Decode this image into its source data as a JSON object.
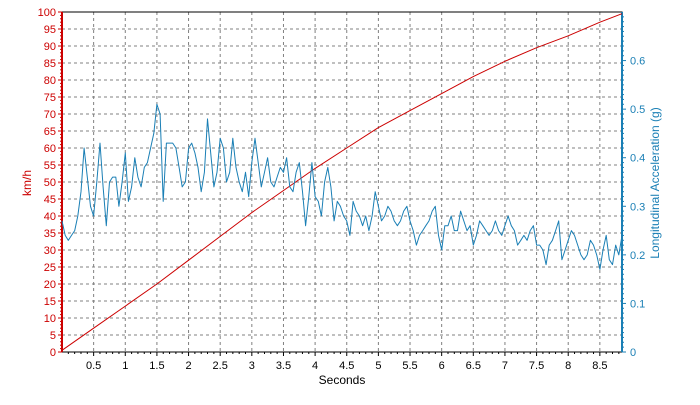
{
  "chart_data": {
    "type": "line",
    "title": "",
    "xlabel": "Seconds",
    "ylabel_left": "km/h",
    "ylabel_right": "Longitudinal Acceleration (g)",
    "xlim": [
      0,
      8.85
    ],
    "ylim_left": [
      0,
      100
    ],
    "ylim_right": [
      0,
      0.7
    ],
    "x_ticks": [
      0.5,
      1,
      1.5,
      2,
      2.5,
      3,
      3.5,
      4,
      4.5,
      5,
      5.5,
      6,
      6.5,
      7,
      7.5,
      8,
      8.5
    ],
    "x_tick_labels": [
      "0.5",
      "1",
      "1.5",
      "2",
      "2.5",
      "3",
      "3.5",
      "4",
      "4.5",
      "5",
      "5.5",
      "6",
      "6.5",
      "7",
      "7.5",
      "8",
      "8.5"
    ],
    "y_left_ticks": [
      0,
      5,
      10,
      15,
      20,
      25,
      30,
      35,
      40,
      45,
      50,
      55,
      60,
      65,
      70,
      75,
      80,
      85,
      90,
      95,
      100
    ],
    "y_left_tick_labels": [
      "0",
      "5",
      "10",
      "15",
      "20",
      "25",
      "30",
      "35",
      "40",
      "45",
      "50",
      "55",
      "60",
      "65",
      "70",
      "75",
      "80",
      "85",
      "90",
      "95",
      "100"
    ],
    "y_right_ticks": [
      0,
      0.1,
      0.2,
      0.3,
      0.4,
      0.5,
      0.6
    ],
    "y_right_tick_labels": [
      "0",
      "0.1",
      "0.2",
      "0.3",
      "0.4",
      "0.5",
      "0.6"
    ],
    "grid": true,
    "colors": {
      "speed": "#cc0000",
      "accel": "#1a7fb5",
      "grid": "#808080",
      "frame": "#000000"
    },
    "series": [
      {
        "axis": "left",
        "x": [
          0,
          0.5,
          1,
          1.5,
          2,
          2.5,
          3,
          3.5,
          4,
          4.5,
          5,
          5.5,
          6,
          6.5,
          7,
          7.5,
          8,
          8.5,
          8.85
        ],
        "values": [
          0.5,
          7,
          13.5,
          20,
          27,
          34,
          41,
          47.5,
          54,
          60,
          66,
          71,
          76,
          81,
          85.5,
          89.5,
          93,
          97,
          99.5
        ]
      },
      {
        "axis": "right",
        "x": [
          0,
          0.05,
          0.1,
          0.15,
          0.2,
          0.25,
          0.3,
          0.35,
          0.4,
          0.45,
          0.5,
          0.55,
          0.6,
          0.65,
          0.7,
          0.75,
          0.8,
          0.85,
          0.9,
          0.95,
          1,
          1.05,
          1.1,
          1.15,
          1.2,
          1.25,
          1.3,
          1.35,
          1.4,
          1.45,
          1.5,
          1.55,
          1.6,
          1.65,
          1.7,
          1.75,
          1.8,
          1.85,
          1.9,
          1.95,
          2,
          2.05,
          2.1,
          2.15,
          2.2,
          2.25,
          2.3,
          2.35,
          2.4,
          2.45,
          2.5,
          2.55,
          2.6,
          2.65,
          2.7,
          2.75,
          2.8,
          2.85,
          2.9,
          2.95,
          3,
          3.05,
          3.1,
          3.15,
          3.2,
          3.25,
          3.3,
          3.35,
          3.4,
          3.45,
          3.5,
          3.55,
          3.6,
          3.65,
          3.7,
          3.75,
          3.8,
          3.85,
          3.9,
          3.95,
          4,
          4.05,
          4.1,
          4.15,
          4.2,
          4.25,
          4.3,
          4.35,
          4.4,
          4.45,
          4.5,
          4.55,
          4.6,
          4.65,
          4.7,
          4.75,
          4.8,
          4.85,
          4.9,
          4.95,
          5,
          5.05,
          5.1,
          5.15,
          5.2,
          5.25,
          5.3,
          5.35,
          5.4,
          5.45,
          5.5,
          5.55,
          5.6,
          5.65,
          5.7,
          5.75,
          5.8,
          5.85,
          5.9,
          5.95,
          6,
          6.05,
          6.1,
          6.15,
          6.2,
          6.25,
          6.3,
          6.35,
          6.4,
          6.45,
          6.5,
          6.55,
          6.6,
          6.65,
          6.7,
          6.75,
          6.8,
          6.85,
          6.9,
          6.95,
          7,
          7.05,
          7.1,
          7.15,
          7.2,
          7.25,
          7.3,
          7.35,
          7.4,
          7.45,
          7.5,
          7.55,
          7.6,
          7.65,
          7.7,
          7.75,
          7.8,
          7.85,
          7.9,
          7.95,
          8,
          8.05,
          8.1,
          8.15,
          8.2,
          8.25,
          8.3,
          8.35,
          8.4,
          8.45,
          8.5,
          8.55,
          8.6,
          8.65,
          8.7,
          8.75,
          8.8,
          8.85
        ],
        "values": [
          0.27,
          0.24,
          0.23,
          0.24,
          0.25,
          0.28,
          0.33,
          0.42,
          0.36,
          0.3,
          0.28,
          0.35,
          0.43,
          0.34,
          0.26,
          0.35,
          0.36,
          0.36,
          0.3,
          0.35,
          0.41,
          0.31,
          0.34,
          0.4,
          0.36,
          0.34,
          0.38,
          0.39,
          0.42,
          0.45,
          0.51,
          0.49,
          0.31,
          0.43,
          0.43,
          0.43,
          0.42,
          0.38,
          0.34,
          0.35,
          0.42,
          0.43,
          0.41,
          0.38,
          0.33,
          0.37,
          0.48,
          0.41,
          0.34,
          0.37,
          0.44,
          0.42,
          0.35,
          0.37,
          0.44,
          0.38,
          0.35,
          0.33,
          0.37,
          0.32,
          0.39,
          0.44,
          0.39,
          0.34,
          0.37,
          0.4,
          0.35,
          0.34,
          0.36,
          0.38,
          0.37,
          0.4,
          0.34,
          0.33,
          0.37,
          0.39,
          0.33,
          0.26,
          0.32,
          0.39,
          0.32,
          0.31,
          0.28,
          0.35,
          0.38,
          0.34,
          0.27,
          0.31,
          0.3,
          0.28,
          0.27,
          0.24,
          0.31,
          0.29,
          0.28,
          0.26,
          0.28,
          0.25,
          0.28,
          0.33,
          0.3,
          0.27,
          0.28,
          0.3,
          0.29,
          0.27,
          0.26,
          0.27,
          0.29,
          0.3,
          0.27,
          0.25,
          0.22,
          0.24,
          0.25,
          0.26,
          0.27,
          0.29,
          0.3,
          0.24,
          0.21,
          0.26,
          0.26,
          0.28,
          0.25,
          0.25,
          0.29,
          0.27,
          0.25,
          0.26,
          0.22,
          0.24,
          0.27,
          0.26,
          0.25,
          0.24,
          0.25,
          0.27,
          0.25,
          0.24,
          0.26,
          0.28,
          0.26,
          0.25,
          0.22,
          0.23,
          0.24,
          0.23,
          0.25,
          0.26,
          0.22,
          0.22,
          0.21,
          0.18,
          0.22,
          0.23,
          0.25,
          0.27,
          0.19,
          0.21,
          0.23,
          0.25,
          0.24,
          0.22,
          0.2,
          0.19,
          0.2,
          0.23,
          0.22,
          0.2,
          0.17,
          0.21,
          0.24,
          0.19,
          0.18,
          0.22,
          0.2,
          0.24
        ]
      }
    ]
  }
}
